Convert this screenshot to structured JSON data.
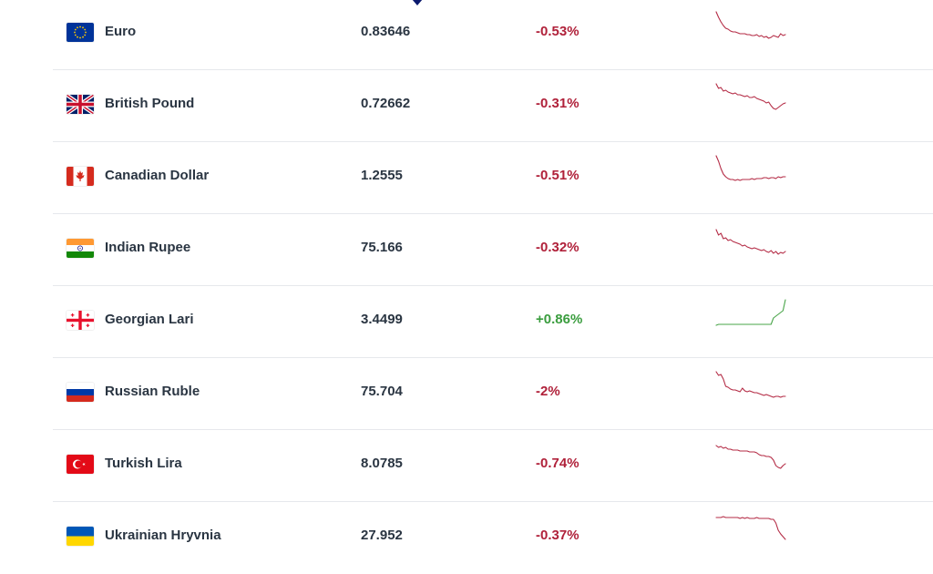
{
  "table": {
    "rows": [
      {
        "flag": "eu-flag-icon",
        "name": "Euro",
        "rate": "0.83646",
        "change": "-0.53%",
        "trend": "down",
        "spark": [
          48,
          42,
          37,
          33,
          30,
          29,
          27,
          26,
          26,
          25,
          24,
          24,
          24,
          23,
          23,
          22,
          22,
          23,
          21,
          22,
          20,
          21,
          19,
          20,
          22,
          21,
          20,
          24,
          22,
          23
        ]
      },
      {
        "flag": "uk-flag-icon",
        "name": "British Pound",
        "rate": "0.72662",
        "change": "-0.31%",
        "trend": "down",
        "spark": [
          48,
          43,
          44,
          40,
          41,
          39,
          38,
          37,
          38,
          36,
          36,
          35,
          34,
          35,
          33,
          33,
          34,
          32,
          31,
          30,
          29,
          27,
          28,
          24,
          21,
          20,
          22,
          24,
          26,
          27
        ]
      },
      {
        "flag": "ca-flag-icon",
        "name": "Canadian Dollar",
        "rate": "1.2555",
        "change": "-0.51%",
        "trend": "down",
        "spark": [
          48,
          42,
          34,
          28,
          25,
          23,
          22,
          22,
          21,
          22,
          21,
          22,
          22,
          22,
          22,
          23,
          22,
          23,
          23,
          23,
          24,
          24,
          23,
          24,
          24,
          23,
          25,
          24,
          25,
          25
        ]
      },
      {
        "flag": "in-flag-icon",
        "name": "Indian Rupee",
        "rate": "75.166",
        "change": "-0.32%",
        "trend": "down",
        "spark": [
          46,
          40,
          42,
          36,
          37,
          34,
          35,
          33,
          32,
          31,
          30,
          28,
          29,
          27,
          26,
          25,
          26,
          25,
          24,
          23,
          24,
          22,
          21,
          23,
          20,
          22,
          19,
          21,
          20,
          22
        ]
      },
      {
        "flag": "ge-flag-icon",
        "name": "Georgian Lari",
        "rate": "3.4499",
        "change": "+0.86%",
        "trend": "up",
        "spark": [
          20,
          21,
          21,
          21,
          21,
          21,
          21,
          21,
          21,
          21,
          21,
          21,
          21,
          21,
          21,
          21,
          21,
          21,
          21,
          21,
          21,
          21,
          21,
          21,
          28,
          30,
          32,
          34,
          36,
          48
        ]
      },
      {
        "flag": "ru-flag-icon",
        "name": "Russian Ruble",
        "rate": "75.704",
        "change": "-2%",
        "trend": "down",
        "spark": [
          48,
          44,
          45,
          40,
          32,
          31,
          29,
          28,
          28,
          27,
          26,
          30,
          27,
          26,
          27,
          26,
          25,
          25,
          24,
          23,
          22,
          23,
          22,
          21,
          20,
          21,
          21,
          20,
          21,
          21
        ]
      },
      {
        "flag": "tr-flag-icon",
        "name": "Turkish Lira",
        "rate": "8.0785",
        "change": "-0.74%",
        "trend": "down",
        "spark": [
          46,
          44,
          45,
          43,
          44,
          42,
          42,
          41,
          41,
          41,
          40,
          40,
          40,
          40,
          39,
          39,
          39,
          38,
          36,
          35,
          35,
          34,
          34,
          33,
          30,
          24,
          22,
          21,
          24,
          26
        ]
      },
      {
        "flag": "ua-flag-icon",
        "name": "Ukrainian Hryvnia",
        "rate": "27.952",
        "change": "-0.37%",
        "trend": "down",
        "spark": [
          46,
          46,
          46,
          47,
          46,
          46,
          46,
          46,
          46,
          46,
          45,
          46,
          45,
          46,
          45,
          45,
          45,
          46,
          45,
          45,
          45,
          45,
          45,
          44,
          44,
          40,
          32,
          28,
          25,
          22
        ]
      }
    ]
  },
  "colors": {
    "negative": "#b0213a",
    "positive": "#3a9d3e",
    "spark_down": "#b42b45",
    "spark_up": "#4aa54a"
  }
}
